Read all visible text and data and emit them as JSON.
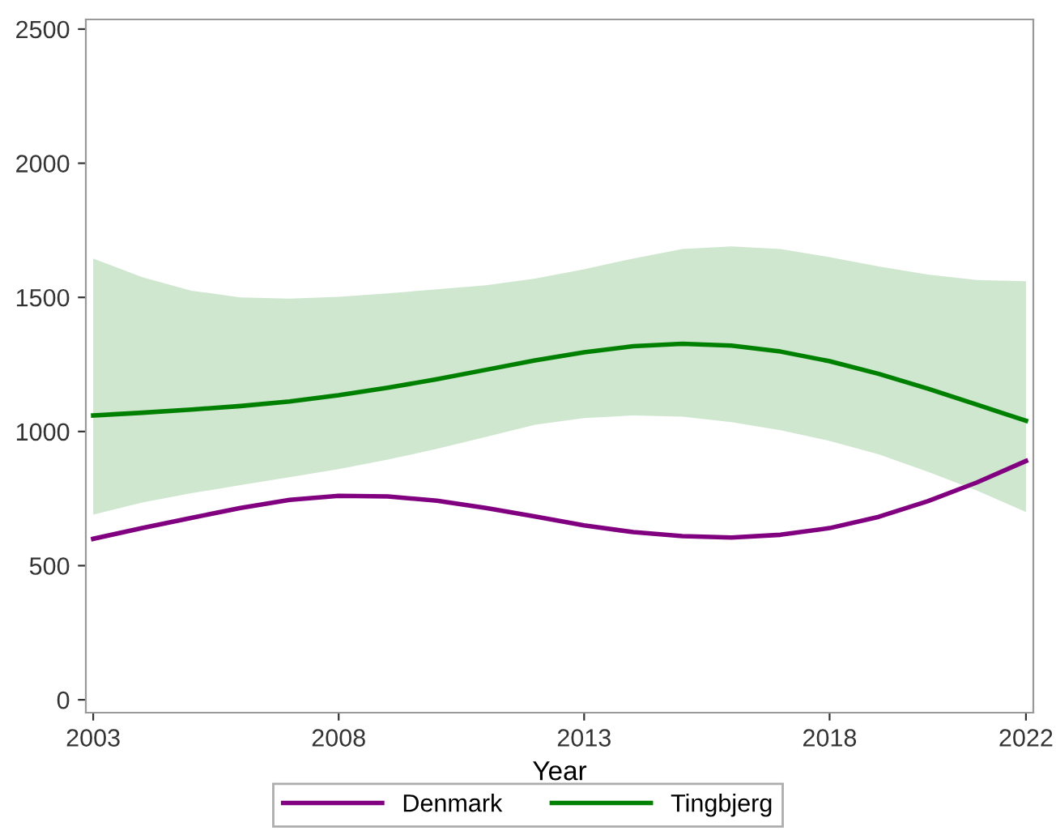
{
  "chart_data": {
    "type": "line",
    "xlabel": "Year",
    "x": [
      2003,
      2004,
      2005,
      2006,
      2007,
      2008,
      2009,
      2010,
      2011,
      2012,
      2013,
      2014,
      2015,
      2016,
      2017,
      2018,
      2019,
      2020,
      2021,
      2022
    ],
    "series": [
      {
        "name": "Denmark",
        "color": "#800080",
        "values": [
          600,
          640,
          678,
          715,
          745,
          760,
          758,
          742,
          715,
          683,
          650,
          625,
          610,
          605,
          615,
          640,
          682,
          740,
          810,
          890
        ]
      },
      {
        "name": "Tingbjerg",
        "color": "#008000",
        "values": [
          1060,
          1070,
          1082,
          1095,
          1112,
          1135,
          1163,
          1195,
          1230,
          1265,
          1295,
          1318,
          1327,
          1320,
          1298,
          1262,
          1215,
          1160,
          1100,
          1040
        ],
        "lower": [
          690,
          735,
          770,
          800,
          830,
          860,
          895,
          935,
          980,
          1025,
          1050,
          1060,
          1055,
          1035,
          1005,
          965,
          915,
          850,
          780,
          700
        ],
        "upper": [
          1645,
          1575,
          1525,
          1500,
          1495,
          1502,
          1515,
          1530,
          1545,
          1570,
          1605,
          1645,
          1680,
          1690,
          1680,
          1650,
          1615,
          1585,
          1565,
          1560
        ]
      }
    ],
    "xlim": [
      2002.85,
      2022.15
    ],
    "ylim": [
      -48,
      2536
    ],
    "xticks": [
      2003,
      2008,
      2013,
      2018,
      2022
    ],
    "yticks": [
      0,
      500,
      1000,
      1500,
      2000,
      2500
    ],
    "grid": false,
    "legend": "bottom",
    "marker": "none",
    "line_style": "solid"
  }
}
